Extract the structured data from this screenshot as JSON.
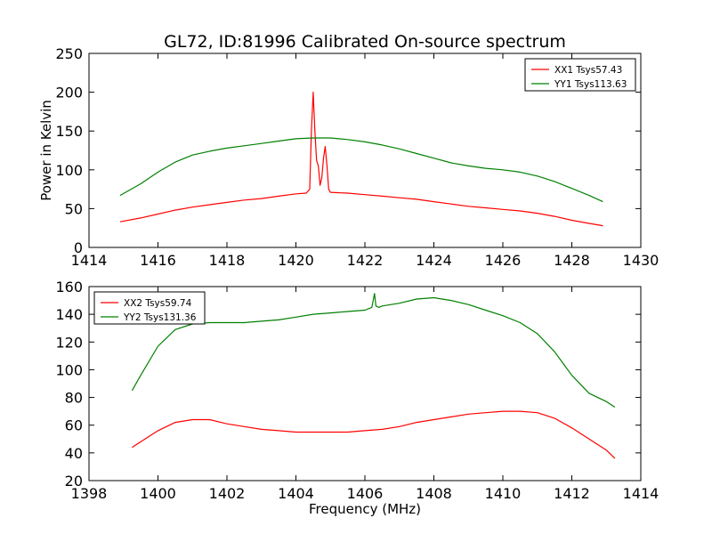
{
  "figure": {
    "title": "GL72, ID:81996 Calibrated On-source spectrum"
  },
  "chart_data": [
    {
      "type": "line",
      "title": "GL72, ID:81996 Calibrated On-source spectrum",
      "xlabel": "",
      "ylabel": "Power in Kelvin",
      "xlim": [
        1414,
        1430
      ],
      "ylim": [
        0,
        250
      ],
      "xticks": [
        "1414",
        "1416",
        "1418",
        "1420",
        "1422",
        "1424",
        "1426",
        "1428",
        "1430"
      ],
      "yticks": [
        "0",
        "50",
        "100",
        "150",
        "200",
        "250"
      ],
      "grid": false,
      "legend_position": "top-right",
      "series": [
        {
          "name": "XX1 Tsys57.43",
          "color": "#ff0000",
          "x": [
            1414.9,
            1415.5,
            1416.0,
            1416.5,
            1417.0,
            1417.5,
            1418.0,
            1418.5,
            1419.0,
            1419.5,
            1420.0,
            1420.3,
            1420.4,
            1420.45,
            1420.5,
            1420.55,
            1420.6,
            1420.65,
            1420.7,
            1420.75,
            1420.8,
            1420.85,
            1420.9,
            1420.95,
            1421.0,
            1421.5,
            1422.0,
            1422.5,
            1423.0,
            1423.5,
            1424.0,
            1424.5,
            1425.0,
            1425.5,
            1426.0,
            1426.5,
            1427.0,
            1427.5,
            1428.0,
            1428.5,
            1428.9
          ],
          "values": [
            33,
            38,
            43,
            48,
            52,
            55,
            58,
            61,
            63,
            66,
            69,
            70,
            75,
            150,
            200,
            150,
            112,
            105,
            80,
            90,
            115,
            130,
            105,
            75,
            71,
            70,
            68,
            66,
            64,
            62,
            59,
            56,
            53,
            51,
            49,
            47,
            44,
            40,
            35,
            31,
            28
          ]
        },
        {
          "name": "YY1 Tsys113.63",
          "color": "#008000",
          "x": [
            1414.9,
            1415.5,
            1416.0,
            1416.5,
            1417.0,
            1417.5,
            1418.0,
            1418.5,
            1419.0,
            1419.5,
            1420.0,
            1420.5,
            1421.0,
            1421.5,
            1422.0,
            1422.5,
            1423.0,
            1423.5,
            1424.0,
            1424.5,
            1425.0,
            1425.5,
            1426.0,
            1426.5,
            1427.0,
            1427.5,
            1428.0,
            1428.5,
            1428.9
          ],
          "values": [
            67,
            82,
            97,
            110,
            119,
            124,
            128,
            131,
            134,
            137,
            140,
            141,
            141,
            139,
            136,
            132,
            127,
            121,
            115,
            109,
            105,
            102,
            100,
            97,
            92,
            85,
            76,
            67,
            59
          ]
        }
      ]
    },
    {
      "type": "line",
      "title": "",
      "xlabel": "Frequency (MHz)",
      "ylabel": "",
      "xlim": [
        1398,
        1414
      ],
      "ylim": [
        20,
        160
      ],
      "xticks": [
        "1398",
        "1400",
        "1402",
        "1404",
        "1406",
        "1408",
        "1410",
        "1412",
        "1414"
      ],
      "yticks": [
        "20",
        "40",
        "60",
        "80",
        "100",
        "120",
        "140",
        "160"
      ],
      "grid": false,
      "legend_position": "top-left",
      "series": [
        {
          "name": "XX2 Tsys59.74",
          "color": "#ff0000",
          "x": [
            1399.25,
            1399.5,
            1400.0,
            1400.5,
            1401.0,
            1401.5,
            1402.0,
            1402.5,
            1403.0,
            1403.5,
            1404.0,
            1404.5,
            1405.0,
            1405.5,
            1406.0,
            1406.5,
            1407.0,
            1407.5,
            1408.0,
            1408.5,
            1409.0,
            1409.5,
            1410.0,
            1410.5,
            1411.0,
            1411.5,
            1412.0,
            1412.5,
            1413.0,
            1413.25
          ],
          "values": [
            44,
            48,
            56,
            62,
            64,
            64,
            61,
            59,
            57,
            56,
            55,
            55,
            55,
            55,
            56,
            57,
            59,
            62,
            64,
            66,
            68,
            69,
            70,
            70,
            69,
            65,
            58,
            50,
            42,
            36
          ]
        },
        {
          "name": "YY2 Tsys131.36",
          "color": "#008000",
          "x": [
            1399.25,
            1399.5,
            1400.0,
            1400.5,
            1401.0,
            1401.5,
            1402.0,
            1402.5,
            1403.0,
            1403.5,
            1404.0,
            1404.5,
            1405.0,
            1405.5,
            1406.0,
            1406.2,
            1406.28,
            1406.32,
            1406.4,
            1406.5,
            1407.0,
            1407.5,
            1408.0,
            1408.5,
            1409.0,
            1409.5,
            1410.0,
            1410.5,
            1411.0,
            1411.5,
            1412.0,
            1412.5,
            1413.0,
            1413.25
          ],
          "values": [
            85,
            96,
            117,
            129,
            133,
            134,
            134,
            134,
            135,
            136,
            138,
            140,
            141,
            142,
            143,
            145,
            155,
            146,
            145,
            146,
            148,
            151,
            152,
            150,
            147,
            143,
            139,
            134,
            126,
            113,
            96,
            83,
            77,
            73
          ]
        }
      ]
    }
  ]
}
